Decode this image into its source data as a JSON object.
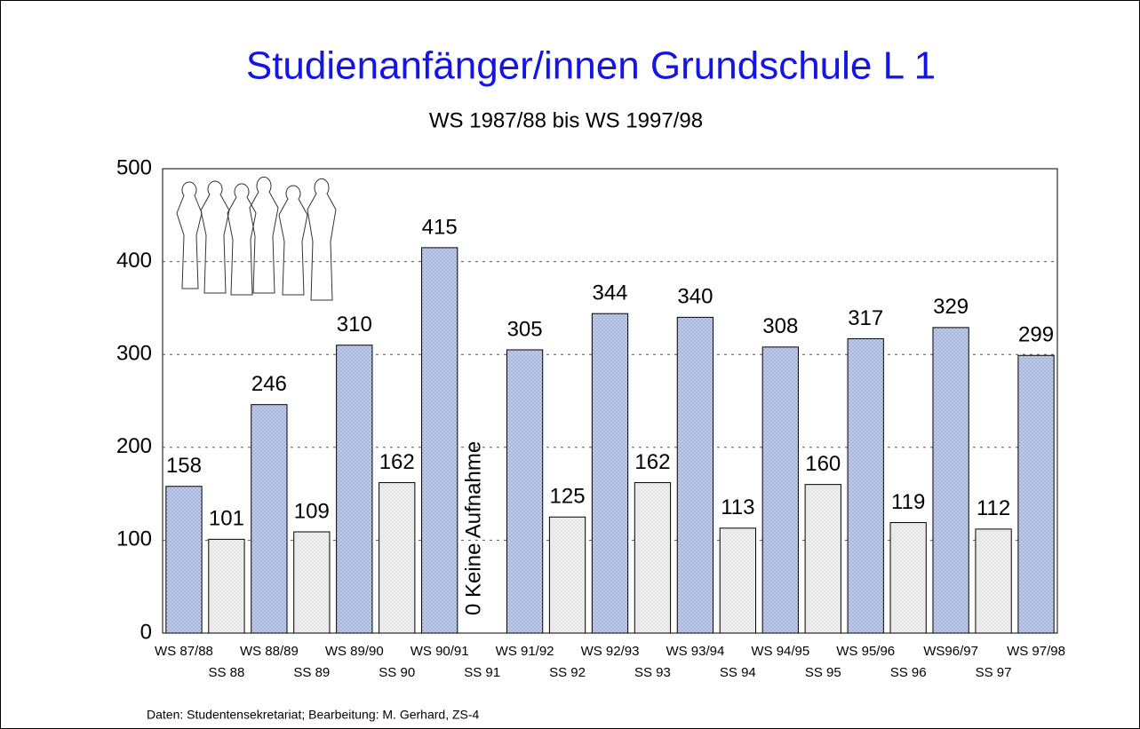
{
  "chart_data": {
    "type": "bar",
    "title": "Studienanfänger/innen Grundschule L 1",
    "subtitle": "WS 1987/88 bis WS 1997/98",
    "categories": [
      "WS 87/88",
      "SS 88",
      "WS 88/89",
      "SS 89",
      "WS 89/90",
      "SS 90",
      "WS 90/91",
      "SS 91",
      "WS 91/92",
      "SS 92",
      "WS 92/93",
      "SS 93",
      "WS 93/94",
      "SS 94",
      "WS 94/95",
      "SS 95",
      "WS 95/96",
      "SS 96",
      "WS96/97",
      "SS 97",
      "WS 97/98"
    ],
    "values": [
      158,
      101,
      246,
      109,
      310,
      162,
      415,
      0,
      305,
      125,
      344,
      162,
      340,
      113,
      308,
      160,
      317,
      119,
      329,
      112,
      299
    ],
    "colors": [
      "#9fb0da",
      "#e4e4e4",
      "#9fb0da",
      "#e4e4e4",
      "#9fb0da",
      "#e4e4e4",
      "#9fb0da",
      "#e4e4e4",
      "#9fb0da",
      "#e4e4e4",
      "#9fb0da",
      "#e4e4e4",
      "#9fb0da",
      "#e4e4e4",
      "#9fb0da",
      "#e4e4e4",
      "#9fb0da",
      "#e4e4e4",
      "#9fb0da",
      "#e4e4e4",
      "#9fb0da"
    ],
    "annotation": "Keine Aufnahme",
    "ylim": [
      0,
      500
    ],
    "yticks": [
      0,
      100,
      200,
      300,
      400,
      500
    ],
    "grid": true,
    "footer": "Daten: Studentensekretariat;  Bearbeitung: M. Gerhard, ZS-4"
  }
}
